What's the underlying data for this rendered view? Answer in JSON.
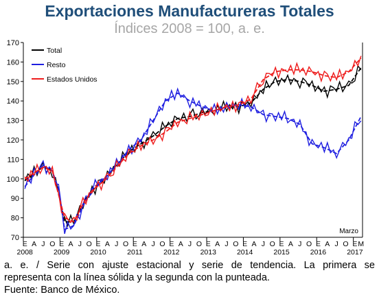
{
  "header": {
    "title": "Exportaciones Manufactureras Totales",
    "subtitle": "Índices 2008 = 100, a. e."
  },
  "notes": {
    "line1": "a. e. / Serie con ajuste estacional y serie de tendencia. La primera se",
    "line2": "representa con la línea sólida y la segunda con la punteada.",
    "line3": "Fuente: Banco de México."
  },
  "colors": {
    "total": "#000000",
    "resto": "#1f1fe0",
    "eeuu": "#ee1c1c",
    "title": "#1f4e79",
    "subtitle": "#a6a6a6"
  },
  "chart_data": {
    "type": "line",
    "title": "Exportaciones Manufactureras Totales",
    "subtitle": "Índices 2008 = 100, a. e.",
    "x_start": "2008-01",
    "x_end": "2017-03",
    "frequency": "monthly",
    "month_ticks": [
      "E",
      "A",
      "J",
      "O"
    ],
    "years": [
      "2008",
      "2009",
      "2010",
      "2011",
      "2012",
      "2013",
      "2014",
      "2015",
      "2016",
      "2017"
    ],
    "last_ticks_2017": [
      "E",
      "M"
    ],
    "ylim": [
      70,
      170
    ],
    "yticks": [
      70,
      80,
      90,
      100,
      110,
      120,
      130,
      140,
      150,
      160,
      170
    ],
    "annotation": "Marzo",
    "legend_position": "top-left",
    "grid": false,
    "series": [
      {
        "name": "Total",
        "key": "total",
        "anchors": [
          [
            "2008-01",
            99
          ],
          [
            "2008-04",
            103
          ],
          [
            "2008-07",
            106
          ],
          [
            "2008-10",
            104
          ],
          [
            "2008-12",
            93
          ],
          [
            "2009-02",
            78
          ],
          [
            "2009-05",
            78
          ],
          [
            "2009-08",
            87
          ],
          [
            "2009-11",
            94
          ],
          [
            "2010-03",
            100
          ],
          [
            "2010-07",
            107
          ],
          [
            "2010-11",
            114
          ],
          [
            "2011-03",
            118
          ],
          [
            "2011-07",
            122
          ],
          [
            "2011-11",
            127
          ],
          [
            "2012-03",
            131
          ],
          [
            "2012-07",
            132
          ],
          [
            "2012-11",
            134
          ],
          [
            "2013-03",
            135
          ],
          [
            "2013-07",
            137
          ],
          [
            "2013-11",
            137
          ],
          [
            "2014-03",
            139
          ],
          [
            "2014-07",
            146
          ],
          [
            "2014-11",
            150
          ],
          [
            "2015-03",
            151
          ],
          [
            "2015-07",
            150
          ],
          [
            "2015-11",
            148
          ],
          [
            "2016-03",
            145
          ],
          [
            "2016-07",
            146
          ],
          [
            "2016-11",
            148
          ],
          [
            "2017-03",
            157
          ]
        ],
        "noise": [
          0,
          2,
          -1,
          3,
          -2,
          1,
          2,
          -2,
          1,
          -3,
          2,
          0,
          -1,
          2,
          -2,
          3,
          -1,
          0,
          2,
          -2,
          1,
          -1,
          2,
          -3,
          2,
          1,
          -2,
          2,
          -1,
          1,
          0,
          -2,
          3,
          -1,
          -1,
          2,
          -2,
          1,
          2,
          -3,
          1,
          0,
          2,
          -1,
          -2,
          3,
          -1,
          1,
          -2,
          2,
          0,
          -1,
          2,
          -2,
          1,
          3,
          -2,
          -1,
          2,
          -1,
          1,
          0,
          -2,
          2,
          -1,
          3,
          -2,
          1,
          -1,
          2,
          -3,
          2,
          0,
          1,
          -2,
          2,
          -1,
          1,
          -2,
          3,
          -1,
          0,
          2,
          -2,
          1,
          -1,
          2,
          -2,
          1,
          0,
          -3,
          2,
          1,
          -1,
          2,
          -2,
          1,
          -1,
          2,
          -3,
          2,
          1,
          -1,
          3,
          -2,
          0,
          2,
          -1,
          -2,
          3,
          -1,
          1,
          -2,
          2,
          -1
        ]
      },
      {
        "name": "Resto",
        "key": "resto",
        "anchors": [
          [
            "2008-01",
            96
          ],
          [
            "2008-04",
            102
          ],
          [
            "2008-07",
            107
          ],
          [
            "2008-10",
            104
          ],
          [
            "2008-12",
            95
          ],
          [
            "2009-02",
            74
          ],
          [
            "2009-05",
            76
          ],
          [
            "2009-08",
            86
          ],
          [
            "2009-11",
            95
          ],
          [
            "2010-03",
            100
          ],
          [
            "2010-07",
            107
          ],
          [
            "2010-11",
            115
          ],
          [
            "2011-03",
            120
          ],
          [
            "2011-07",
            130
          ],
          [
            "2011-11",
            140
          ],
          [
            "2012-03",
            144
          ],
          [
            "2012-07",
            140
          ],
          [
            "2012-11",
            137
          ],
          [
            "2013-03",
            135
          ],
          [
            "2013-07",
            137
          ],
          [
            "2013-11",
            138
          ],
          [
            "2014-03",
            137
          ],
          [
            "2014-07",
            133
          ],
          [
            "2014-11",
            132
          ],
          [
            "2015-03",
            131
          ],
          [
            "2015-07",
            128
          ],
          [
            "2015-11",
            118
          ],
          [
            "2016-03",
            116
          ],
          [
            "2016-07",
            113
          ],
          [
            "2016-11",
            120
          ],
          [
            "2017-03",
            132
          ]
        ],
        "noise": [
          -1,
          2,
          -2,
          3,
          -1,
          1,
          2,
          -3,
          1,
          0,
          -2,
          2,
          1,
          -2,
          3,
          -1,
          0,
          2,
          -3,
          1,
          2,
          -1,
          -2,
          3,
          -1,
          1,
          0,
          -2,
          2,
          -1,
          3,
          -2,
          1,
          -1,
          2,
          -3,
          0,
          2,
          -1,
          1,
          -2,
          3,
          -1,
          0,
          2,
          -2,
          1,
          -1,
          3,
          -2,
          2,
          -1,
          1,
          0,
          -3,
          2,
          -1,
          2,
          -2,
          1,
          0,
          -1,
          3,
          -2,
          1,
          -2,
          2,
          -1,
          1,
          0,
          -2,
          3,
          -1,
          1,
          -2,
          2,
          -1,
          0,
          2,
          -3,
          1,
          1,
          -2,
          2,
          -1,
          3,
          -2,
          0,
          1,
          -2,
          2,
          -1,
          1,
          -3,
          2,
          0,
          -1,
          2,
          -2,
          3,
          -1,
          1,
          -2,
          0,
          2,
          -1,
          1,
          -2,
          3,
          -1,
          -2,
          2,
          1
        ]
      },
      {
        "name": "Estados Unidos",
        "key": "eeuu",
        "anchors": [
          [
            "2008-01",
            100
          ],
          [
            "2008-04",
            103
          ],
          [
            "2008-07",
            106
          ],
          [
            "2008-10",
            104
          ],
          [
            "2008-12",
            92
          ],
          [
            "2009-02",
            80
          ],
          [
            "2009-05",
            78
          ],
          [
            "2009-08",
            87
          ],
          [
            "2009-11",
            94
          ],
          [
            "2010-03",
            99
          ],
          [
            "2010-07",
            106
          ],
          [
            "2010-11",
            113
          ],
          [
            "2011-03",
            117
          ],
          [
            "2011-07",
            120
          ],
          [
            "2011-11",
            124
          ],
          [
            "2012-03",
            129
          ],
          [
            "2012-07",
            131
          ],
          [
            "2012-11",
            133
          ],
          [
            "2013-03",
            135
          ],
          [
            "2013-07",
            137
          ],
          [
            "2013-11",
            138
          ],
          [
            "2014-03",
            141
          ],
          [
            "2014-07",
            151
          ],
          [
            "2014-11",
            155
          ],
          [
            "2015-03",
            156
          ],
          [
            "2015-07",
            156
          ],
          [
            "2015-11",
            155
          ],
          [
            "2016-03",
            153
          ],
          [
            "2016-07",
            152
          ],
          [
            "2016-11",
            155
          ],
          [
            "2017-03",
            162
          ]
        ],
        "noise": [
          1,
          -2,
          2,
          -1,
          3,
          -2,
          0,
          1,
          -2,
          2,
          -1,
          1,
          -3,
          2,
          0,
          -1,
          2,
          -2,
          1,
          3,
          -2,
          1,
          -1,
          0,
          2,
          -3,
          1,
          2,
          -1,
          -2,
          3,
          -1,
          1,
          -2,
          2,
          0,
          -1,
          3,
          -2,
          1,
          -1,
          2,
          -2,
          0,
          1,
          -3,
          2,
          1,
          -1,
          2,
          -2,
          1,
          0,
          -2,
          3,
          -1,
          1,
          -2,
          2,
          -1,
          -1,
          2,
          -2,
          3,
          -1,
          0,
          1,
          -2,
          2,
          -3,
          1,
          1,
          -1,
          2,
          -2,
          0,
          3,
          -1,
          -2,
          2,
          1,
          -1,
          2,
          -3,
          1,
          0,
          -1,
          2,
          -2,
          3,
          -1,
          1,
          -2,
          2,
          0,
          -1,
          1,
          -3,
          2,
          1,
          -2,
          2,
          -1,
          3,
          -2,
          1,
          0,
          -1,
          2,
          -2,
          1,
          3
        ]
      }
    ]
  }
}
